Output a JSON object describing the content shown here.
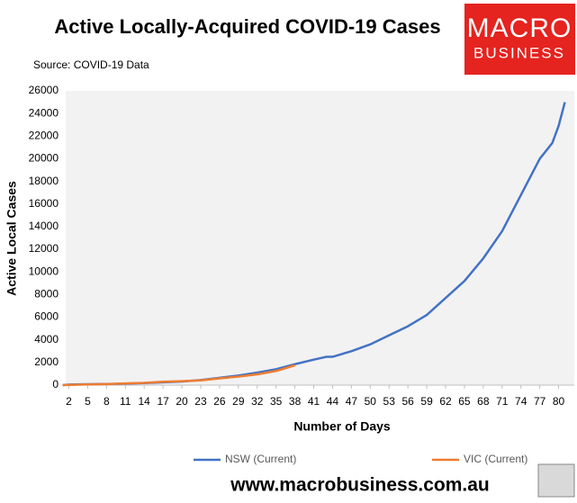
{
  "chart_data": {
    "type": "line",
    "title": "Active Locally-Acquired COVID-19 Cases",
    "subtitle": "Source: COVID-19 Data",
    "xlabel": "Number of Days",
    "ylabel": "Active Local Cases",
    "series": [
      {
        "name": "NSW (Current)",
        "color": "#4472c4",
        "x": [
          1,
          2,
          5,
          8,
          11,
          14,
          17,
          20,
          23,
          26,
          29,
          32,
          35,
          38,
          41,
          43,
          44,
          47,
          50,
          53,
          56,
          59,
          62,
          65,
          68,
          71,
          74,
          77,
          79,
          80,
          81
        ],
        "values": [
          0,
          50,
          80,
          100,
          130,
          180,
          250,
          320,
          450,
          650,
          850,
          1100,
          1400,
          1850,
          2250,
          2500,
          2500,
          3000,
          3600,
          4400,
          5200,
          6200,
          7700,
          9200,
          11200,
          13600,
          16800,
          20000,
          21400,
          22900,
          25000
        ]
      },
      {
        "name": "VIC (Current)",
        "color": "#ed7d31",
        "x": [
          1,
          5,
          8,
          11,
          14,
          17,
          20,
          23,
          26,
          29,
          32,
          35,
          38
        ],
        "values": [
          0,
          60,
          90,
          150,
          200,
          300,
          350,
          420,
          600,
          750,
          950,
          1250,
          1750
        ]
      }
    ],
    "xlim": [
      1.5,
      82.5
    ],
    "xticks": [
      2,
      5,
      8,
      11,
      14,
      17,
      20,
      23,
      26,
      29,
      32,
      35,
      38,
      41,
      44,
      47,
      50,
      53,
      56,
      59,
      62,
      65,
      68,
      71,
      74,
      77,
      80
    ],
    "ylim": [
      0,
      26000
    ],
    "yticks": [
      0,
      2000,
      4000,
      6000,
      8000,
      10000,
      12000,
      14000,
      16000,
      18000,
      20000,
      22000,
      24000,
      26000
    ],
    "grid": false,
    "legend": "bottom"
  },
  "branding": {
    "logo_top": "MACRO",
    "logo_bottom": "BUSINESS",
    "url": "www.macrobusiness.com.au"
  }
}
